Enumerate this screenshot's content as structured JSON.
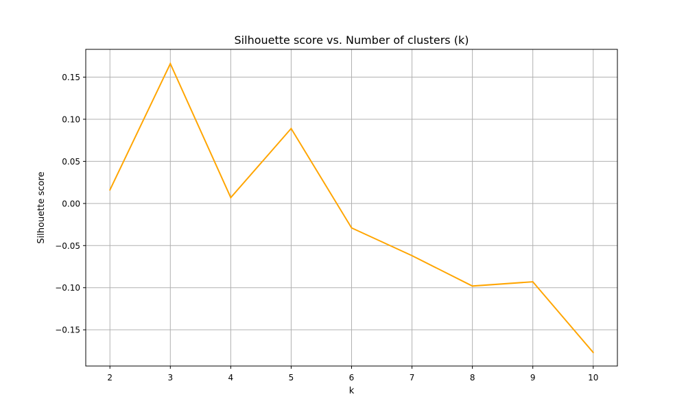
{
  "chart_data": {
    "type": "line",
    "title": "Silhouette score vs. Number of clusters (k)",
    "xlabel": "k",
    "ylabel": "Silhouette score",
    "xlim": [
      1.6,
      10.4
    ],
    "ylim": [
      -0.193,
      0.183
    ],
    "grid": true,
    "x_ticks": [
      2,
      3,
      4,
      5,
      6,
      7,
      8,
      9,
      10
    ],
    "y_ticks": [
      0.15,
      0.1,
      0.05,
      0.0,
      -0.05,
      -0.1,
      -0.15
    ],
    "y_tick_labels": [
      "0.15",
      "0.10",
      "0.05",
      "0.00",
      "−0.05",
      "−0.10",
      "−0.15"
    ],
    "series": [
      {
        "color": "#ffa500",
        "x": [
          2,
          3,
          4,
          5,
          6,
          7,
          8,
          9,
          10
        ],
        "y": [
          0.016,
          0.166,
          0.007,
          0.089,
          -0.029,
          -0.062,
          -0.098,
          -0.093,
          -0.177
        ]
      }
    ]
  }
}
